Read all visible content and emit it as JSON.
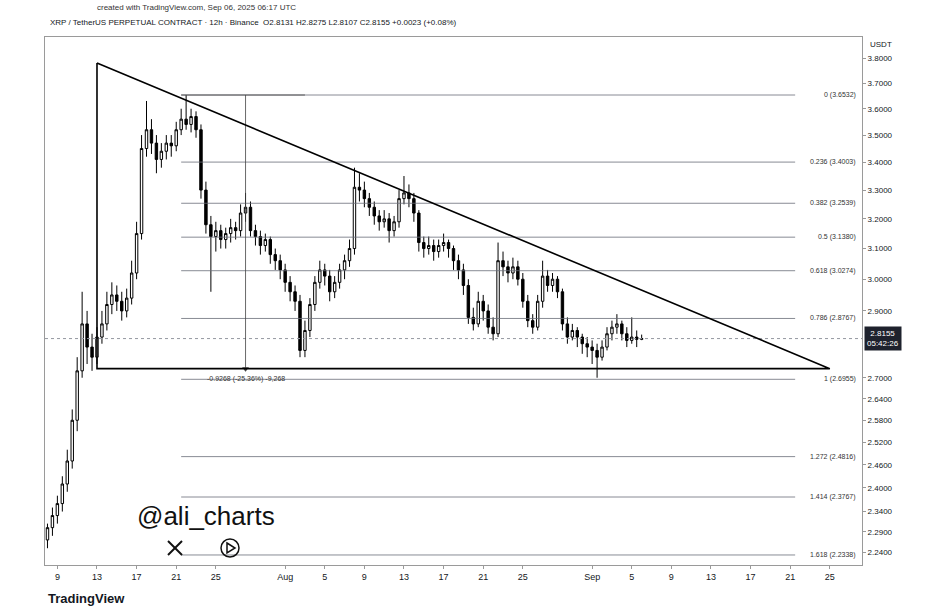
{
  "chart_data": {
    "type": "candlestick",
    "title": "XRP / TetherUS PERPETUAL CONTRACT · 12h · Binance",
    "subtitle": "O2.8131 H2.8275 L2.8107 C2.8155 +0.0023 (+0.08%)",
    "source": "created with TradingView.com, Sep 06, 2025 06:17 UTC",
    "currency": "USDT",
    "watermark": "@ali_charts",
    "logo": "TradingView",
    "color": "#000000",
    "log": "y",
    "grid": false,
    "xlim": [
      "2025-07-07 18:00",
      "2025-09-28 06:00"
    ],
    "xticks": [
      {
        "value": "2025-07-09",
        "label": "9"
      },
      {
        "value": "2025-07-13",
        "label": "13"
      },
      {
        "value": "2025-07-17",
        "label": "17"
      },
      {
        "value": "2025-07-21",
        "label": "21"
      },
      {
        "value": "2025-07-25",
        "label": "25"
      },
      {
        "value": "2025-08-01",
        "label": "Aug"
      },
      {
        "value": "2025-08-05",
        "label": "5"
      },
      {
        "value": "2025-08-09",
        "label": "9"
      },
      {
        "value": "2025-08-13",
        "label": "13"
      },
      {
        "value": "2025-08-17",
        "label": "17"
      },
      {
        "value": "2025-08-21",
        "label": "21"
      },
      {
        "value": "2025-08-25",
        "label": "25"
      },
      {
        "value": "2025-09-01",
        "label": "Sep"
      },
      {
        "value": "2025-09-05",
        "label": "5"
      },
      {
        "value": "2025-09-09",
        "label": "9"
      },
      {
        "value": "2025-09-13",
        "label": "13"
      },
      {
        "value": "2025-09-17",
        "label": "17"
      },
      {
        "value": "2025-09-21",
        "label": "21"
      },
      {
        "value": "2025-09-25",
        "label": "25"
      }
    ],
    "ylim": [
      2.21,
      3.887
    ],
    "yticks": [
      {
        "value": 3.8,
        "label": "3.8000"
      },
      {
        "value": 3.7,
        "label": "3.7000"
      },
      {
        "value": 3.6,
        "label": "3.6000"
      },
      {
        "value": 3.5,
        "label": "3.5000"
      },
      {
        "value": 3.4,
        "label": "3.4000"
      },
      {
        "value": 3.3,
        "label": "3.3000"
      },
      {
        "value": 3.2,
        "label": "3.2000"
      },
      {
        "value": 3.1,
        "label": "3.1000"
      },
      {
        "value": 3.0,
        "label": "3.0000"
      },
      {
        "value": 2.9,
        "label": "2.9000"
      },
      {
        "value": 2.7,
        "label": "2.7000"
      },
      {
        "value": 2.64,
        "label": "2.6400"
      },
      {
        "value": 2.58,
        "label": "2.5800"
      },
      {
        "value": 2.52,
        "label": "2.5200"
      },
      {
        "value": 2.46,
        "label": "2.4600"
      },
      {
        "value": 2.4,
        "label": "2.4000"
      },
      {
        "value": 2.34,
        "label": "2.3400"
      },
      {
        "value": 2.29,
        "label": "2.2900"
      },
      {
        "value": 2.24,
        "label": "2.2400"
      }
    ],
    "x": [
      "2025-07-08 00:00",
      "2025-07-08 12:00",
      "2025-07-09 00:00",
      "2025-07-09 12:00",
      "2025-07-10 00:00",
      "2025-07-10 12:00",
      "2025-07-11 00:00",
      "2025-07-11 12:00",
      "2025-07-12 00:00",
      "2025-07-12 12:00",
      "2025-07-13 00:00",
      "2025-07-13 12:00",
      "2025-07-14 00:00",
      "2025-07-14 12:00",
      "2025-07-15 00:00",
      "2025-07-15 12:00",
      "2025-07-16 00:00",
      "2025-07-16 12:00",
      "2025-07-17 00:00",
      "2025-07-17 12:00",
      "2025-07-18 00:00",
      "2025-07-18 12:00",
      "2025-07-19 00:00",
      "2025-07-19 12:00",
      "2025-07-20 00:00",
      "2025-07-20 12:00",
      "2025-07-21 00:00",
      "2025-07-21 12:00",
      "2025-07-22 00:00",
      "2025-07-22 12:00",
      "2025-07-23 00:00",
      "2025-07-23 12:00",
      "2025-07-24 00:00",
      "2025-07-24 12:00",
      "2025-07-25 00:00",
      "2025-07-25 12:00",
      "2025-07-26 00:00",
      "2025-07-26 12:00",
      "2025-07-27 00:00",
      "2025-07-27 12:00",
      "2025-07-28 00:00",
      "2025-07-28 12:00",
      "2025-07-29 00:00",
      "2025-07-29 12:00",
      "2025-07-30 00:00",
      "2025-07-30 12:00",
      "2025-07-31 00:00",
      "2025-07-31 12:00",
      "2025-08-01 00:00",
      "2025-08-01 12:00",
      "2025-08-02 00:00",
      "2025-08-02 12:00",
      "2025-08-03 00:00",
      "2025-08-03 12:00",
      "2025-08-04 00:00",
      "2025-08-04 12:00",
      "2025-08-05 00:00",
      "2025-08-05 12:00",
      "2025-08-06 00:00",
      "2025-08-06 12:00",
      "2025-08-07 00:00",
      "2025-08-07 12:00",
      "2025-08-08 00:00",
      "2025-08-08 12:00",
      "2025-08-09 00:00",
      "2025-08-09 12:00",
      "2025-08-10 00:00",
      "2025-08-10 12:00",
      "2025-08-11 00:00",
      "2025-08-11 12:00",
      "2025-08-12 00:00",
      "2025-08-12 12:00",
      "2025-08-13 00:00",
      "2025-08-13 12:00",
      "2025-08-14 00:00",
      "2025-08-14 12:00",
      "2025-08-15 00:00",
      "2025-08-15 12:00",
      "2025-08-16 00:00",
      "2025-08-16 12:00",
      "2025-08-17 00:00",
      "2025-08-17 12:00",
      "2025-08-18 00:00",
      "2025-08-18 12:00",
      "2025-08-19 00:00",
      "2025-08-19 12:00",
      "2025-08-20 00:00",
      "2025-08-20 12:00",
      "2025-08-21 00:00",
      "2025-08-21 12:00",
      "2025-08-22 00:00",
      "2025-08-22 12:00",
      "2025-08-23 00:00",
      "2025-08-23 12:00",
      "2025-08-24 00:00",
      "2025-08-24 12:00",
      "2025-08-25 00:00",
      "2025-08-25 12:00",
      "2025-08-26 00:00",
      "2025-08-26 12:00",
      "2025-08-27 00:00",
      "2025-08-27 12:00",
      "2025-08-28 00:00",
      "2025-08-28 12:00",
      "2025-08-29 00:00",
      "2025-08-29 12:00",
      "2025-08-30 00:00",
      "2025-08-30 12:00",
      "2025-08-31 00:00",
      "2025-08-31 12:00",
      "2025-09-01 00:00",
      "2025-09-01 12:00",
      "2025-09-02 00:00",
      "2025-09-02 12:00",
      "2025-09-03 00:00",
      "2025-09-03 12:00",
      "2025-09-04 00:00",
      "2025-09-04 12:00",
      "2025-09-05 00:00",
      "2025-09-05 12:00",
      "2025-09-06 00:00"
    ],
    "open": [
      2.27,
      2.3,
      2.33,
      2.36,
      2.41,
      2.47,
      2.58,
      2.72,
      2.86,
      2.79,
      2.76,
      2.82,
      2.86,
      2.92,
      2.95,
      2.93,
      2.9,
      2.94,
      3.02,
      3.15,
      3.45,
      3.52,
      3.47,
      3.41,
      3.44,
      3.47,
      3.46,
      3.52,
      3.56,
      3.54,
      3.57,
      3.52,
      3.3,
      3.18,
      3.14,
      3.16,
      3.13,
      3.15,
      3.17,
      3.16,
      3.22,
      3.24,
      3.16,
      3.14,
      3.11,
      3.13,
      3.08,
      3.06,
      3.03,
      2.99,
      2.96,
      2.93,
      2.78,
      2.84,
      2.92,
      2.99,
      3.03,
      3.01,
      2.96,
      2.99,
      3.03,
      3.06,
      3.1,
      3.31,
      3.3,
      3.27,
      3.24,
      3.21,
      3.19,
      3.2,
      3.16,
      3.19,
      3.27,
      3.29,
      3.27,
      3.22,
      3.12,
      3.1,
      3.11,
      3.09,
      3.11,
      3.12,
      3.1,
      3.06,
      3.03,
      2.98,
      2.88,
      2.86,
      2.93,
      2.9,
      2.85,
      2.83,
      3.06,
      3.04,
      3.02,
      3.04,
      3.0,
      2.93,
      2.87,
      2.85,
      2.93,
      3.01,
      2.98,
      3.0,
      2.96,
      2.86,
      2.82,
      2.84,
      2.82,
      2.8,
      2.79,
      2.78,
      2.76,
      2.79,
      2.83,
      2.85,
      2.86,
      2.83,
      2.81,
      2.82,
      2.8131
    ],
    "high": [
      2.31,
      2.35,
      2.38,
      2.43,
      2.5,
      2.61,
      2.76,
      2.96,
      2.9,
      2.83,
      2.85,
      2.9,
      2.96,
      2.99,
      2.98,
      2.96,
      2.97,
      3.06,
      3.19,
      3.5,
      3.63,
      3.56,
      3.5,
      3.47,
      3.5,
      3.5,
      3.55,
      3.6,
      3.6532,
      3.6,
      3.59,
      3.54,
      3.33,
      3.21,
      3.19,
      3.18,
      3.17,
      3.2,
      3.19,
      3.25,
      3.29,
      3.26,
      3.18,
      3.16,
      3.15,
      3.14,
      3.1,
      3.08,
      3.05,
      3.01,
      2.98,
      2.95,
      2.87,
      2.94,
      3.01,
      3.06,
      3.05,
      3.03,
      3.01,
      3.05,
      3.08,
      3.13,
      3.38,
      3.36,
      3.33,
      3.29,
      3.26,
      3.23,
      3.23,
      3.22,
      3.21,
      3.3,
      3.35,
      3.32,
      3.29,
      3.23,
      3.14,
      3.14,
      3.13,
      3.13,
      3.15,
      3.13,
      3.11,
      3.08,
      3.05,
      3.0,
      2.91,
      2.96,
      2.95,
      2.92,
      2.88,
      3.12,
      3.09,
      3.06,
      3.07,
      3.06,
      3.02,
      2.95,
      2.89,
      2.95,
      3.06,
      3.03,
      3.02,
      3.01,
      2.97,
      2.88,
      2.86,
      2.85,
      2.83,
      2.82,
      2.81,
      2.8,
      2.81,
      2.85,
      2.87,
      2.89,
      2.87,
      2.85,
      2.88,
      2.84,
      2.8275
    ],
    "low": [
      2.25,
      2.28,
      2.31,
      2.34,
      2.39,
      2.45,
      2.55,
      2.7,
      2.74,
      2.72,
      2.74,
      2.8,
      2.84,
      2.89,
      2.9,
      2.87,
      2.88,
      2.92,
      3.0,
      3.13,
      3.42,
      3.43,
      3.36,
      3.38,
      3.41,
      3.42,
      3.44,
      3.5,
      3.52,
      3.51,
      3.49,
      3.27,
      3.15,
      2.96,
      3.09,
      3.1,
      3.1,
      3.12,
      3.13,
      3.14,
      3.19,
      3.14,
      3.11,
      3.08,
      3.09,
      3.05,
      3.03,
      3.0,
      2.96,
      2.93,
      2.9,
      2.76,
      2.76,
      2.82,
      2.9,
      2.97,
      2.98,
      2.93,
      2.94,
      2.97,
      3.0,
      3.04,
      3.08,
      3.26,
      3.24,
      3.21,
      3.18,
      3.16,
      3.17,
      3.12,
      3.14,
      3.17,
      3.25,
      3.24,
      3.19,
      3.09,
      3.07,
      3.08,
      3.06,
      3.07,
      3.09,
      3.07,
      3.03,
      3.0,
      2.95,
      2.86,
      2.84,
      2.85,
      2.87,
      2.83,
      2.81,
      2.82,
      3.01,
      2.99,
      3.0,
      2.98,
      2.91,
      2.85,
      2.83,
      2.84,
      2.91,
      2.96,
      2.96,
      2.94,
      2.84,
      2.8,
      2.81,
      2.79,
      2.77,
      2.76,
      2.74,
      2.7,
      2.75,
      2.78,
      2.81,
      2.83,
      2.81,
      2.79,
      2.8,
      2.79,
      2.8107
    ],
    "close": [
      2.3,
      2.33,
      2.36,
      2.41,
      2.47,
      2.58,
      2.72,
      2.86,
      2.79,
      2.76,
      2.82,
      2.86,
      2.92,
      2.95,
      2.93,
      2.9,
      2.94,
      3.02,
      3.15,
      3.45,
      3.52,
      3.47,
      3.41,
      3.44,
      3.47,
      3.46,
      3.52,
      3.56,
      3.54,
      3.57,
      3.52,
      3.3,
      3.18,
      3.14,
      3.16,
      3.13,
      3.15,
      3.17,
      3.16,
      3.22,
      3.24,
      3.16,
      3.14,
      3.11,
      3.13,
      3.08,
      3.06,
      3.03,
      2.99,
      2.96,
      2.93,
      2.78,
      2.84,
      2.92,
      2.99,
      3.03,
      3.01,
      2.96,
      2.99,
      3.03,
      3.06,
      3.1,
      3.31,
      3.3,
      3.27,
      3.24,
      3.21,
      3.19,
      3.2,
      3.16,
      3.19,
      3.27,
      3.29,
      3.27,
      3.22,
      3.12,
      3.1,
      3.11,
      3.09,
      3.11,
      3.12,
      3.1,
      3.06,
      3.03,
      2.98,
      2.88,
      2.86,
      2.93,
      2.9,
      2.85,
      2.83,
      3.06,
      3.04,
      3.02,
      3.04,
      3.0,
      2.93,
      2.87,
      2.85,
      2.93,
      3.01,
      2.98,
      3.0,
      2.96,
      2.86,
      2.82,
      2.84,
      2.82,
      2.8,
      2.79,
      2.78,
      2.76,
      2.79,
      2.83,
      2.85,
      2.86,
      2.83,
      2.81,
      2.82,
      2.8131,
      2.8155
    ],
    "triangle": {
      "x": [
        "2025-07-13 00:00",
        "2025-09-25 00:00",
        "2025-07-13 00:00",
        "2025-07-13 00:00"
      ],
      "y": [
        3.78,
        2.7264,
        2.7264,
        3.78
      ]
    },
    "fib": {
      "start": "2025-07-21 12:00",
      "end": "2025-09-21 12:00",
      "levels": [
        {
          "value": 3.6532,
          "label": "0 (3.6532)"
        },
        {
          "value": 3.4003,
          "label": "0.236 (3.4003)"
        },
        {
          "value": 3.2539,
          "label": "0.382 (3.2539)"
        },
        {
          "value": 3.138,
          "label": "0.5 (3.1380)"
        },
        {
          "value": 3.0274,
          "label": "0.618 (3.0274)"
        },
        {
          "value": 2.8767,
          "label": "0.786 (2.8767)"
        },
        {
          "value": 2.6955,
          "label": "1 (2.6955)"
        },
        {
          "value": 2.4816,
          "label": "1.272 (2.4816)"
        },
        {
          "value": 2.3767,
          "label": "1.414 (2.3767)"
        },
        {
          "value": 2.2338,
          "label": "1.618 (2.2338)"
        }
      ]
    },
    "measure": {
      "x": "2025-07-28 00:00",
      "start": "2025-07-21 12:00",
      "end": "2025-08-03 00:00",
      "from": 3.6532,
      "to": 2.7264,
      "label": "-0.9268 (-25.36%) -9,268"
    },
    "last_price": {
      "value": 2.8155,
      "label": "2.8155",
      "countdown": "05:42:26"
    }
  }
}
